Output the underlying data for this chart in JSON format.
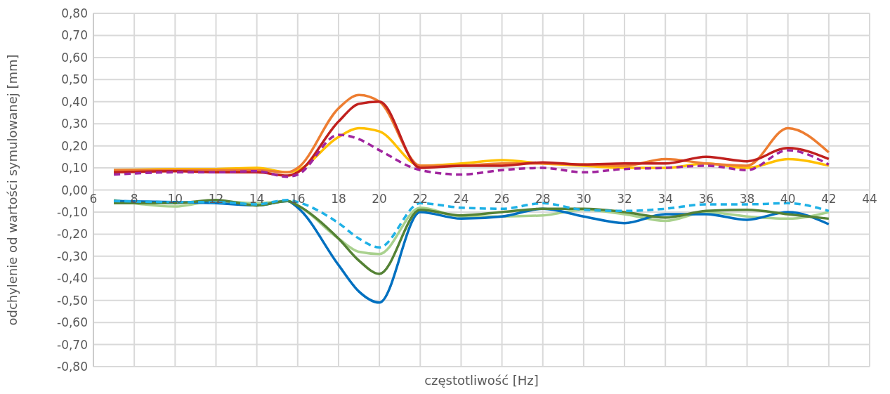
{
  "chart_data": {
    "type": "line",
    "xlabel": "częstotliwość [Hz]",
    "ylabel": "odchylenie od wartości symulowanej [mm]",
    "x": [
      7,
      10,
      12,
      14,
      15.5,
      16,
      18,
      19,
      20,
      22,
      24,
      26,
      28,
      30,
      32,
      34,
      36,
      38,
      40,
      42
    ],
    "xlim": [
      6,
      44
    ],
    "xticks": [
      6,
      8,
      10,
      12,
      14,
      16,
      18,
      20,
      22,
      24,
      26,
      28,
      30,
      32,
      34,
      36,
      38,
      40,
      42,
      44
    ],
    "ylim": [
      -0.8,
      0.8
    ],
    "yticks": [
      {
        "value": -0.8,
        "label": "-0,80"
      },
      {
        "value": -0.7,
        "label": "-0,70"
      },
      {
        "value": -0.6,
        "label": "-0,60"
      },
      {
        "value": -0.5,
        "label": "-0,50"
      },
      {
        "value": -0.4,
        "label": "-0,40"
      },
      {
        "value": -0.3,
        "label": "-0,30"
      },
      {
        "value": -0.2,
        "label": "-0,20"
      },
      {
        "value": -0.1,
        "label": "-0,10"
      },
      {
        "value": 0,
        "label": "0,00"
      },
      {
        "value": 0.1,
        "label": "0,10"
      },
      {
        "value": 0.2,
        "label": "0,20"
      },
      {
        "value": 0.3,
        "label": "0,30"
      },
      {
        "value": 0.4,
        "label": "0,40"
      },
      {
        "value": 0.5,
        "label": "0,50"
      },
      {
        "value": 0.6,
        "label": "0,60"
      },
      {
        "value": 0.7,
        "label": "0,70"
      },
      {
        "value": 0.8,
        "label": "0,80"
      }
    ],
    "grid": true,
    "legend": false,
    "marker": "none",
    "series": [
      {
        "color": "#ffc000",
        "line_style": "solid",
        "values": [
          0.09,
          0.095,
          0.095,
          0.1,
          0.08,
          0.09,
          0.24,
          0.28,
          0.265,
          0.11,
          0.12,
          0.135,
          0.12,
          0.11,
          0.1,
          0.1,
          0.12,
          0.1,
          0.14,
          0.11
        ]
      },
      {
        "color": "#ed7d31",
        "line_style": "solid",
        "values": [
          0.09,
          0.09,
          0.09,
          0.09,
          0.08,
          0.1,
          0.37,
          0.43,
          0.4,
          0.11,
          0.11,
          0.12,
          0.12,
          0.115,
          0.11,
          0.14,
          0.12,
          0.11,
          0.28,
          0.17
        ]
      },
      {
        "color": "#c0201e",
        "line_style": "solid",
        "values": [
          0.08,
          0.085,
          0.08,
          0.08,
          0.065,
          0.08,
          0.31,
          0.39,
          0.4,
          0.1,
          0.11,
          0.11,
          0.125,
          0.115,
          0.12,
          0.12,
          0.15,
          0.13,
          0.19,
          0.14
        ]
      },
      {
        "color": "#a0259f",
        "line_style": "dashed",
        "values": [
          0.07,
          0.08,
          0.08,
          0.085,
          0.06,
          0.07,
          0.25,
          0.23,
          0.18,
          0.09,
          0.07,
          0.09,
          0.1,
          0.08,
          0.095,
          0.1,
          0.11,
          0.09,
          0.18,
          0.115
        ]
      },
      {
        "color": "#a9d18e",
        "line_style": "solid",
        "values": [
          -0.045,
          -0.075,
          -0.05,
          -0.06,
          -0.05,
          -0.07,
          -0.22,
          -0.28,
          -0.29,
          -0.08,
          -0.12,
          -0.12,
          -0.115,
          -0.09,
          -0.11,
          -0.14,
          -0.1,
          -0.12,
          -0.13,
          -0.1
        ]
      },
      {
        "color": "#0070c0",
        "line_style": "solid",
        "values": [
          -0.05,
          -0.055,
          -0.06,
          -0.07,
          -0.05,
          -0.08,
          -0.34,
          -0.46,
          -0.51,
          -0.1,
          -0.13,
          -0.12,
          -0.085,
          -0.12,
          -0.15,
          -0.11,
          -0.11,
          -0.135,
          -0.1,
          -0.155
        ]
      },
      {
        "color": "#548235",
        "line_style": "solid",
        "values": [
          -0.06,
          -0.06,
          -0.045,
          -0.07,
          -0.05,
          -0.07,
          -0.22,
          -0.32,
          -0.38,
          -0.09,
          -0.115,
          -0.1,
          -0.085,
          -0.085,
          -0.1,
          -0.125,
          -0.095,
          -0.09,
          -0.11,
          -0.13
        ]
      },
      {
        "color": "#1fb1e6",
        "line_style": "dashed",
        "values": [
          -0.05,
          -0.055,
          -0.055,
          -0.065,
          -0.045,
          -0.055,
          -0.15,
          -0.22,
          -0.26,
          -0.06,
          -0.08,
          -0.085,
          -0.06,
          -0.09,
          -0.095,
          -0.085,
          -0.065,
          -0.065,
          -0.06,
          -0.095
        ]
      }
    ]
  }
}
